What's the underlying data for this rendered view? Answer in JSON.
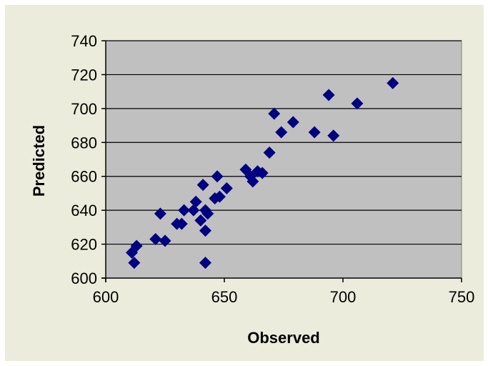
{
  "chart_data": {
    "type": "scatter",
    "title": "",
    "xlabel": "Observed",
    "ylabel": "Predicted",
    "xlim": [
      600,
      750
    ],
    "ylim": [
      600,
      740
    ],
    "x_ticks": [
      600,
      650,
      700,
      750
    ],
    "y_ticks": [
      600,
      620,
      640,
      660,
      680,
      700,
      720,
      740
    ],
    "grid": "horizontal",
    "legend": "none",
    "colors": {
      "plot_background": "#c0c0c0",
      "chart_background": "#ececdc",
      "marker": "#000080",
      "gridline": "#000000"
    },
    "series": [
      {
        "marker": "diamond",
        "points": [
          {
            "x": 611,
            "y": 615
          },
          {
            "x": 612,
            "y": 609
          },
          {
            "x": 613,
            "y": 619
          },
          {
            "x": 621,
            "y": 623
          },
          {
            "x": 623,
            "y": 638
          },
          {
            "x": 625,
            "y": 622
          },
          {
            "x": 630,
            "y": 632
          },
          {
            "x": 632,
            "y": 632
          },
          {
            "x": 633,
            "y": 640
          },
          {
            "x": 637,
            "y": 640
          },
          {
            "x": 638,
            "y": 645
          },
          {
            "x": 640,
            "y": 634
          },
          {
            "x": 641,
            "y": 655
          },
          {
            "x": 642,
            "y": 628
          },
          {
            "x": 642,
            "y": 609
          },
          {
            "x": 642,
            "y": 640
          },
          {
            "x": 643,
            "y": 638
          },
          {
            "x": 646,
            "y": 647
          },
          {
            "x": 647,
            "y": 660
          },
          {
            "x": 648,
            "y": 648
          },
          {
            "x": 651,
            "y": 653
          },
          {
            "x": 659,
            "y": 664
          },
          {
            "x": 661,
            "y": 660
          },
          {
            "x": 662,
            "y": 657
          },
          {
            "x": 664,
            "y": 663
          },
          {
            "x": 666,
            "y": 662
          },
          {
            "x": 669,
            "y": 674
          },
          {
            "x": 671,
            "y": 697
          },
          {
            "x": 674,
            "y": 686
          },
          {
            "x": 679,
            "y": 692
          },
          {
            "x": 688,
            "y": 686
          },
          {
            "x": 694,
            "y": 708
          },
          {
            "x": 696,
            "y": 684
          },
          {
            "x": 706,
            "y": 703
          },
          {
            "x": 721,
            "y": 715
          }
        ]
      }
    ]
  }
}
